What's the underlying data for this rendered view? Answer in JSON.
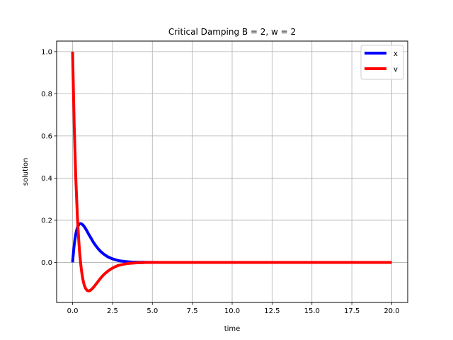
{
  "chart_data": {
    "type": "line",
    "title": "Critical Damping B = 2, w = 2",
    "xlabel": "time",
    "ylabel": "solution",
    "xlim": [
      -1.0,
      21.0
    ],
    "ylim": [
      -0.19,
      1.05
    ],
    "grid": true,
    "legend_position": "top-right",
    "x_ticks": [
      0.0,
      2.5,
      5.0,
      7.5,
      10.0,
      12.5,
      15.0,
      17.5,
      20.0
    ],
    "x_tick_labels": [
      "0.0",
      "2.5",
      "5.0",
      "7.5",
      "10.0",
      "12.5",
      "15.0",
      "17.5",
      "20.0"
    ],
    "y_ticks": [
      0.0,
      0.2,
      0.4,
      0.6,
      0.8,
      1.0
    ],
    "y_tick_labels": [
      "0.0",
      "0.2",
      "0.4",
      "0.6",
      "0.8",
      "1.0"
    ],
    "x": [
      0.0,
      0.1,
      0.2,
      0.3,
      0.4,
      0.5,
      0.6,
      0.7,
      0.8,
      0.9,
      1.0,
      1.1,
      1.2,
      1.3,
      1.4,
      1.5,
      1.6,
      1.8,
      2.0,
      2.2,
      2.5,
      2.8,
      3.0,
      3.5,
      4.0,
      4.5,
      5.0,
      6.0,
      7.0,
      8.0,
      10.0,
      12.0,
      14.0,
      16.0,
      18.0,
      20.0
    ],
    "series": [
      {
        "name": "x",
        "color": "#0000ff",
        "values": [
          0.0,
          0.082,
          0.134,
          0.165,
          0.18,
          0.184,
          0.181,
          0.173,
          0.162,
          0.149,
          0.135,
          0.122,
          0.109,
          0.096,
          0.085,
          0.075,
          0.065,
          0.049,
          0.037,
          0.027,
          0.017,
          0.01,
          0.007,
          0.003,
          0.001,
          0.0006,
          0.0002,
          0.0,
          0.0,
          0.0,
          0.0,
          0.0,
          0.0,
          0.0,
          0.0,
          0.0
        ]
      },
      {
        "name": "v",
        "color": "#ff0000",
        "values": [
          1.0,
          0.655,
          0.402,
          0.219,
          0.09,
          0.0,
          -0.06,
          -0.099,
          -0.121,
          -0.132,
          -0.135,
          -0.133,
          -0.127,
          -0.119,
          -0.11,
          -0.1,
          -0.09,
          -0.071,
          -0.055,
          -0.042,
          -0.027,
          -0.016,
          -0.012,
          -0.005,
          -0.002,
          -0.0007,
          -0.0002,
          0.0,
          0.0,
          0.0,
          0.0,
          0.0,
          0.0,
          0.0,
          0.0,
          0.0
        ]
      }
    ]
  }
}
